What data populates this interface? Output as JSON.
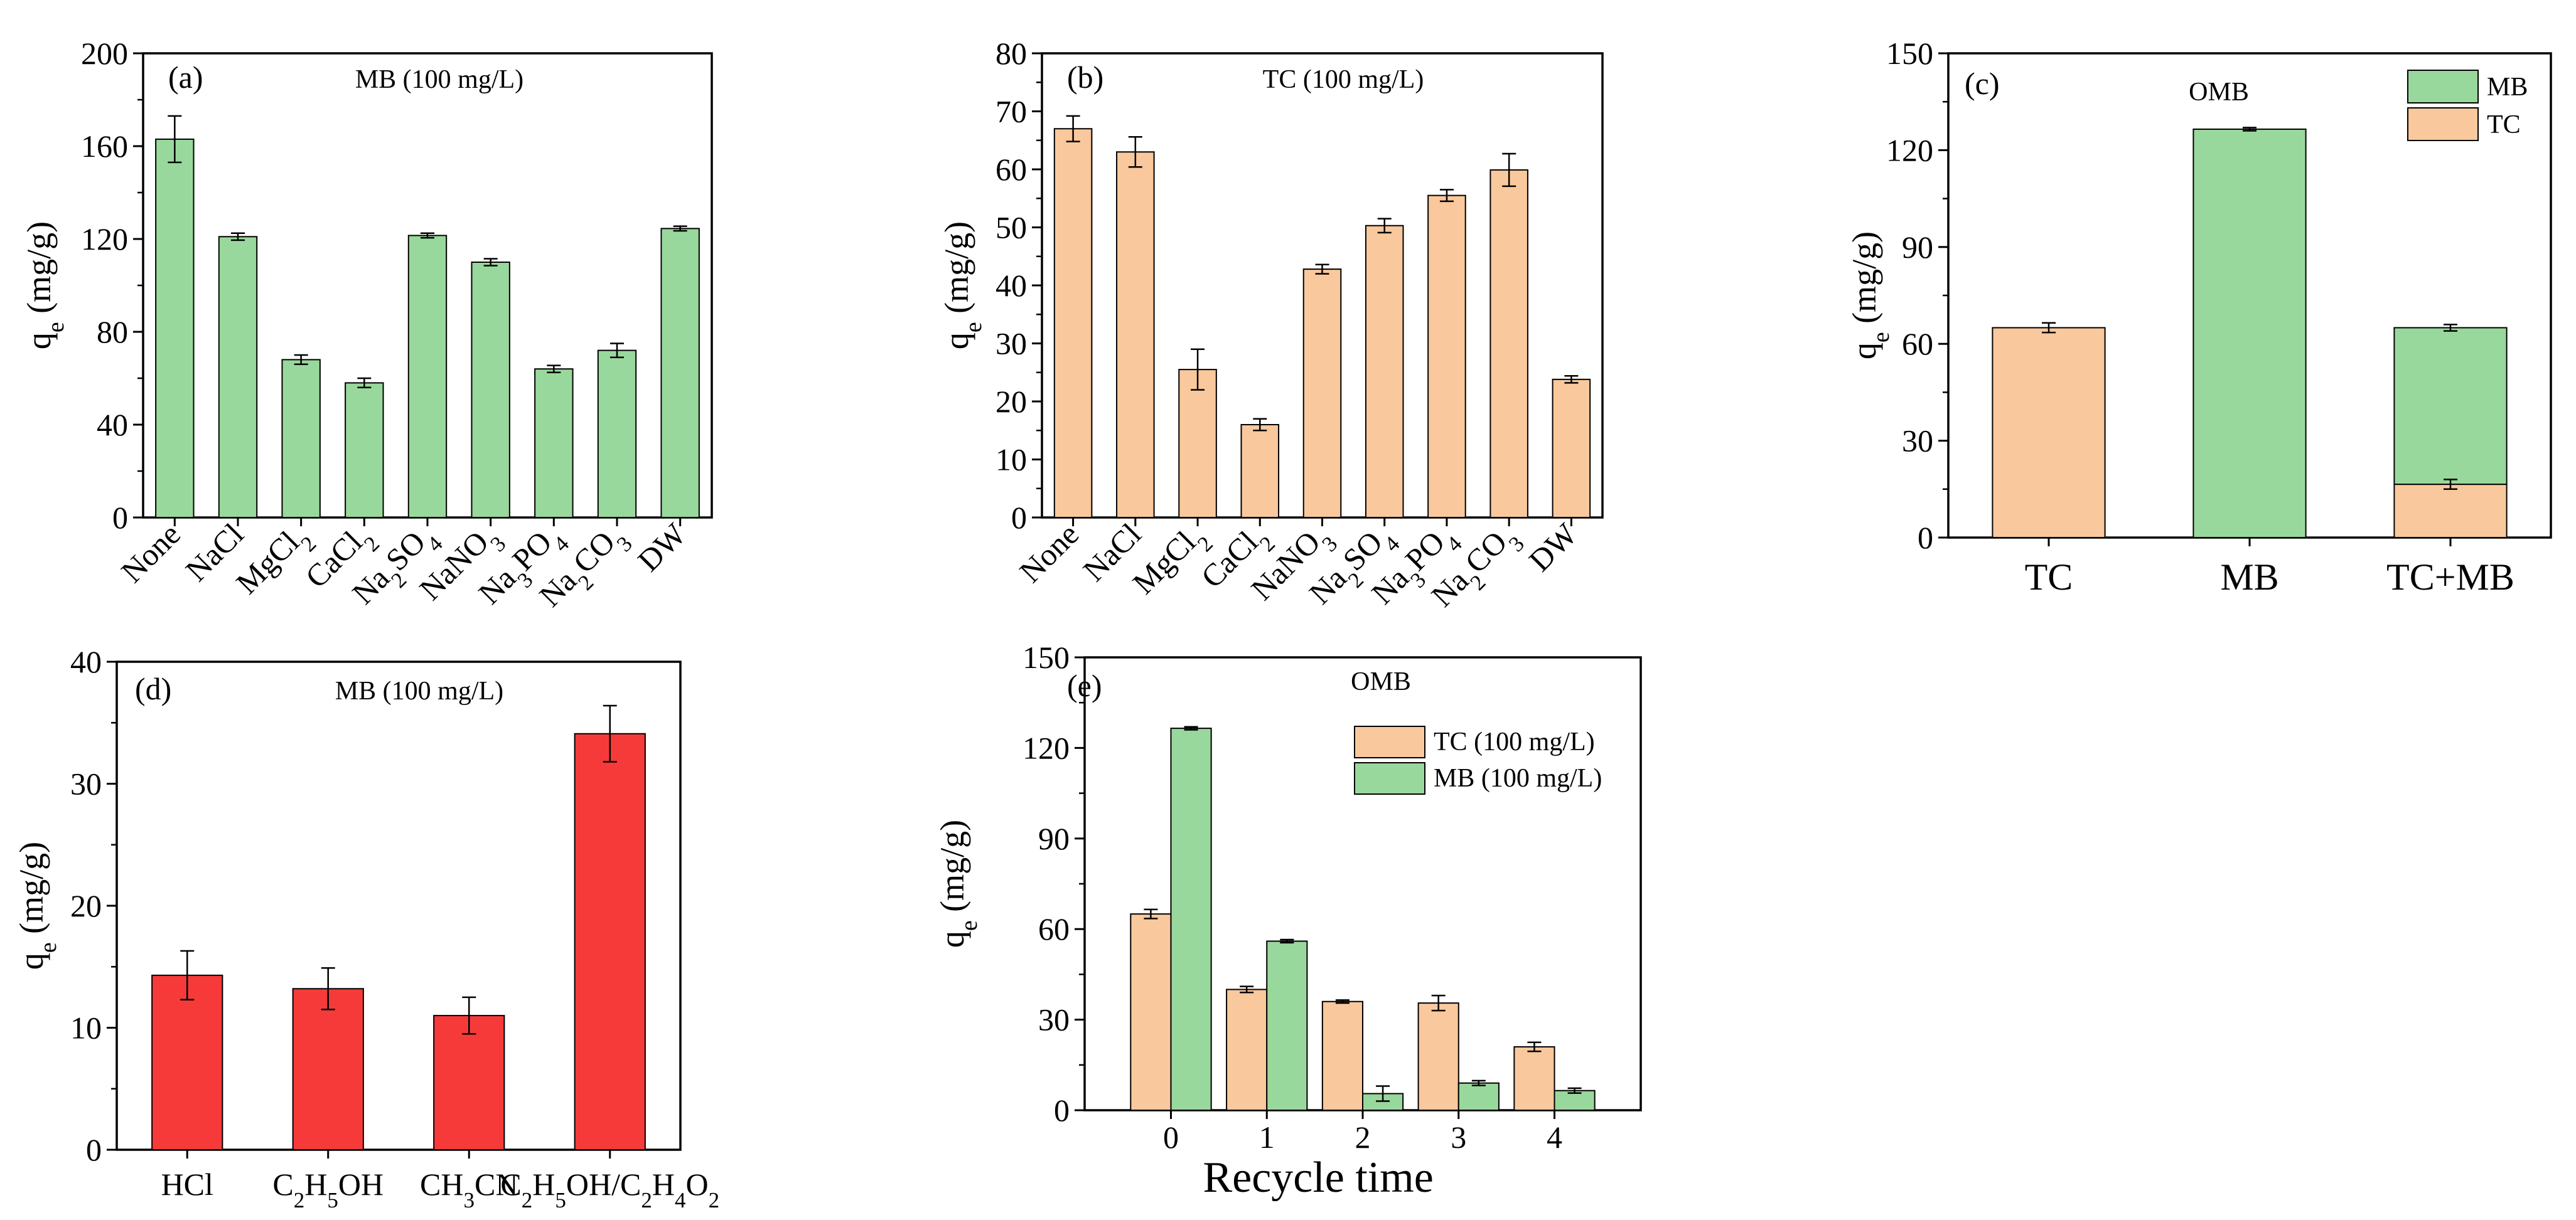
{
  "chart_data": [
    {
      "id": "a",
      "type": "bar",
      "panel_label": "(a)",
      "annotation": "MB (100 mg/L)",
      "ylabel": {
        "main": "q",
        "sub": "e",
        "rest": " (mg/g)"
      },
      "ylim": [
        0,
        200
      ],
      "yticks": [
        0,
        40,
        80,
        120,
        160,
        200
      ],
      "bar_color": "#99d89c",
      "categories": [
        {
          "parts": [
            [
              "None",
              ""
            ]
          ]
        },
        {
          "parts": [
            [
              "NaCl",
              ""
            ]
          ]
        },
        {
          "parts": [
            [
              "MgCl",
              ""
            ],
            [
              "2",
              "sub"
            ]
          ]
        },
        {
          "parts": [
            [
              "CaCl",
              ""
            ],
            [
              "2",
              "sub"
            ]
          ]
        },
        {
          "parts": [
            [
              "Na",
              ""
            ],
            [
              "2",
              "sub"
            ],
            [
              "SO",
              ""
            ],
            [
              "4",
              "sub"
            ]
          ]
        },
        {
          "parts": [
            [
              "NaNO",
              ""
            ],
            [
              "3",
              "sub"
            ]
          ]
        },
        {
          "parts": [
            [
              "Na",
              ""
            ],
            [
              "3",
              "sub"
            ],
            [
              "PO",
              ""
            ],
            [
              "4",
              "sub"
            ]
          ]
        },
        {
          "parts": [
            [
              "Na",
              ""
            ],
            [
              "2",
              "sub"
            ],
            [
              "CO",
              ""
            ],
            [
              "3",
              "sub"
            ]
          ]
        },
        {
          "parts": [
            [
              "DW",
              ""
            ]
          ]
        }
      ],
      "values": [
        163,
        121,
        68,
        58,
        121.5,
        110,
        64,
        72,
        124.5
      ],
      "errors": [
        10,
        1.5,
        2,
        2,
        1,
        1.5,
        1.5,
        3,
        1
      ]
    },
    {
      "id": "b",
      "type": "bar",
      "panel_label": "(b)",
      "annotation": "TC (100 mg/L)",
      "ylabel": {
        "main": "q",
        "sub": "e",
        "rest": " (mg/g)"
      },
      "ylim": [
        0,
        80
      ],
      "yticks": [
        0,
        10,
        20,
        30,
        40,
        50,
        60,
        70,
        80
      ],
      "bar_color": "#f9c89c",
      "categories": [
        {
          "parts": [
            [
              "None",
              ""
            ]
          ]
        },
        {
          "parts": [
            [
              "NaCl",
              ""
            ]
          ]
        },
        {
          "parts": [
            [
              "MgCl",
              ""
            ],
            [
              "2",
              "sub"
            ]
          ]
        },
        {
          "parts": [
            [
              "CaCl",
              ""
            ],
            [
              "2",
              "sub"
            ]
          ]
        },
        {
          "parts": [
            [
              "NaNO",
              ""
            ],
            [
              "3",
              "sub"
            ]
          ]
        },
        {
          "parts": [
            [
              "Na",
              ""
            ],
            [
              "2",
              "sub"
            ],
            [
              "SO",
              ""
            ],
            [
              "4",
              "sub"
            ]
          ]
        },
        {
          "parts": [
            [
              "Na",
              ""
            ],
            [
              "3",
              "sub"
            ],
            [
              "PO",
              ""
            ],
            [
              "4",
              "sub"
            ]
          ]
        },
        {
          "parts": [
            [
              "Na",
              ""
            ],
            [
              "2",
              "sub"
            ],
            [
              "CO",
              ""
            ],
            [
              "3",
              "sub"
            ]
          ]
        },
        {
          "parts": [
            [
              "DW",
              ""
            ]
          ]
        }
      ],
      "values": [
        67,
        63,
        25.5,
        16,
        42.8,
        50.3,
        55.5,
        59.9,
        23.8
      ],
      "errors": [
        2.2,
        2.6,
        3.5,
        1,
        0.8,
        1.2,
        1,
        2.8,
        0.6
      ]
    },
    {
      "id": "c",
      "type": "stacked-bar",
      "panel_label": "(c)",
      "annotation": "OMB",
      "ylabel": {
        "main": "q",
        "sub": "e",
        "rest": " (mg/g)"
      },
      "ylim": [
        0,
        150
      ],
      "yticks": [
        0,
        30,
        60,
        90,
        120,
        150
      ],
      "categories": [
        "TC",
        "MB",
        "TC+MB"
      ],
      "series": [
        {
          "name": "TC",
          "color": "#f9c89c",
          "values": [
            65,
            0,
            16.5
          ],
          "errors": [
            1.5,
            0,
            1.5
          ]
        },
        {
          "name": "MB",
          "color": "#99d89c",
          "values": [
            0,
            126.5,
            48.5
          ],
          "errors": [
            0,
            0.5,
            1
          ]
        }
      ],
      "legend": [
        "MB",
        "TC"
      ],
      "legend_position": "top-right"
    },
    {
      "id": "d",
      "type": "bar",
      "panel_label": "(d)",
      "annotation": "MB (100 mg/L)",
      "ylabel": {
        "main": "q",
        "sub": "e",
        "rest": " (mg/g)"
      },
      "ylim": [
        0,
        40
      ],
      "yticks": [
        0,
        10,
        20,
        30,
        40
      ],
      "bar_color": "#f63a3a",
      "categories": [
        {
          "parts": [
            [
              "HCl",
              ""
            ]
          ]
        },
        {
          "parts": [
            [
              "C",
              ""
            ],
            [
              "2",
              "sub"
            ],
            [
              "H",
              ""
            ],
            [
              "5",
              "sub"
            ],
            [
              "OH",
              ""
            ]
          ]
        },
        {
          "parts": [
            [
              "CH",
              ""
            ],
            [
              "3",
              "sub"
            ],
            [
              "CN",
              ""
            ]
          ]
        },
        {
          "parts": [
            [
              "C",
              ""
            ],
            [
              "2",
              "sub"
            ],
            [
              "H",
              ""
            ],
            [
              "5",
              "sub"
            ],
            [
              "OH/C",
              ""
            ],
            [
              "2",
              "sub"
            ],
            [
              "H",
              ""
            ],
            [
              "4",
              "sub"
            ],
            [
              "O",
              ""
            ],
            [
              "2",
              "sub"
            ]
          ]
        }
      ],
      "values": [
        14.3,
        13.2,
        11,
        34.1
      ],
      "errors": [
        2,
        1.7,
        1.5,
        2.3
      ]
    },
    {
      "id": "e",
      "type": "grouped-bar",
      "panel_label": "(e)",
      "annotation": "OMB",
      "ylabel": {
        "main": "q",
        "sub": "e",
        "rest": " (mg/g)"
      },
      "xlabel": "Recycle time",
      "ylim": [
        0,
        150
      ],
      "yticks": [
        0,
        30,
        60,
        90,
        120,
        150
      ],
      "xlim": [
        -0.9,
        4.9
      ],
      "categories": [
        0,
        1,
        2,
        3,
        4
      ],
      "series": [
        {
          "name": "TC (100 mg/L)",
          "color": "#f9c89c",
          "values": [
            65,
            40,
            36,
            35.5,
            21
          ],
          "errors": [
            1.5,
            1,
            0.5,
            2.5,
            1.5
          ]
        },
        {
          "name": "MB (100 mg/L)",
          "color": "#99d89c",
          "values": [
            126.5,
            56,
            5.5,
            9,
            6.5
          ],
          "errors": [
            0.5,
            0.5,
            2.5,
            0.8,
            0.8
          ]
        }
      ],
      "legend_position": "top-right"
    }
  ]
}
